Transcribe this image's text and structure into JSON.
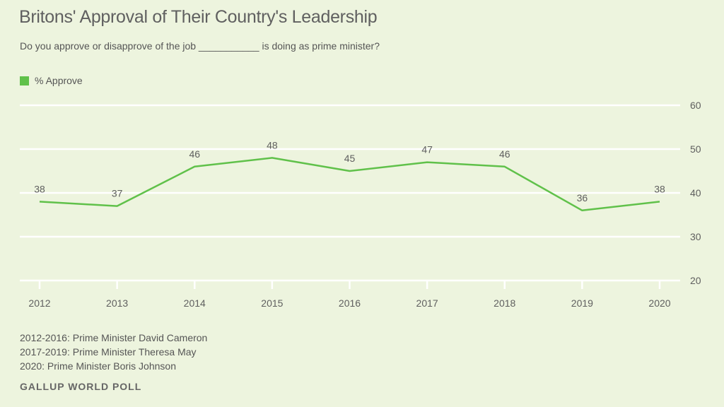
{
  "chart_data": {
    "type": "line",
    "title": "Britons' Approval of Their Country's Leadership",
    "subtitle": "Do you approve or disapprove of the job ___________ is doing as prime minister?",
    "xlabel": "",
    "ylabel": "",
    "categories": [
      "2012",
      "2013",
      "2014",
      "2015",
      "2016",
      "2017",
      "2018",
      "2019",
      "2020"
    ],
    "series": [
      {
        "name": "% Approve",
        "color": "#60c14a",
        "values": [
          38,
          37,
          46,
          48,
          45,
          47,
          46,
          36,
          38
        ]
      }
    ],
    "ylim": [
      20,
      60
    ],
    "yticks": [
      20,
      30,
      40,
      50,
      60
    ],
    "grid": true,
    "legend_position": "top-left",
    "y_axis_side": "right"
  },
  "notes": [
    "2012-2016: Prime Minister David Cameron",
    "2017-2019: Prime Minister Theresa May",
    "2020: Prime Minister Boris Johnson"
  ],
  "source": "GALLUP WORLD POLL"
}
